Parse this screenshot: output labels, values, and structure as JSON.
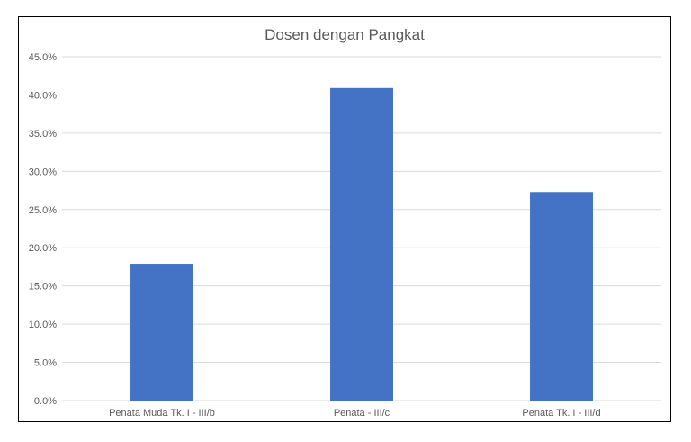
{
  "chart_data": {
    "type": "bar",
    "title": "Dosen dengan Pangkat",
    "categories": [
      "Penata Muda Tk. I - III/b",
      "Penata - III/c",
      "Penata Tk. I - III/d"
    ],
    "values": [
      17.9,
      40.9,
      27.3
    ],
    "ylim": [
      0,
      45
    ],
    "yticks": [
      "0.0%",
      "5.0%",
      "10.0%",
      "15.0%",
      "20.0%",
      "25.0%",
      "30.0%",
      "35.0%",
      "40.0%",
      "45.0%"
    ],
    "ytick_values": [
      0,
      5,
      10,
      15,
      20,
      25,
      30,
      35,
      40,
      45
    ],
    "grid": true,
    "legend": "none",
    "colors": {
      "bar": "#4472C4",
      "grid": "#D9D9D9",
      "text": "#595959"
    }
  }
}
